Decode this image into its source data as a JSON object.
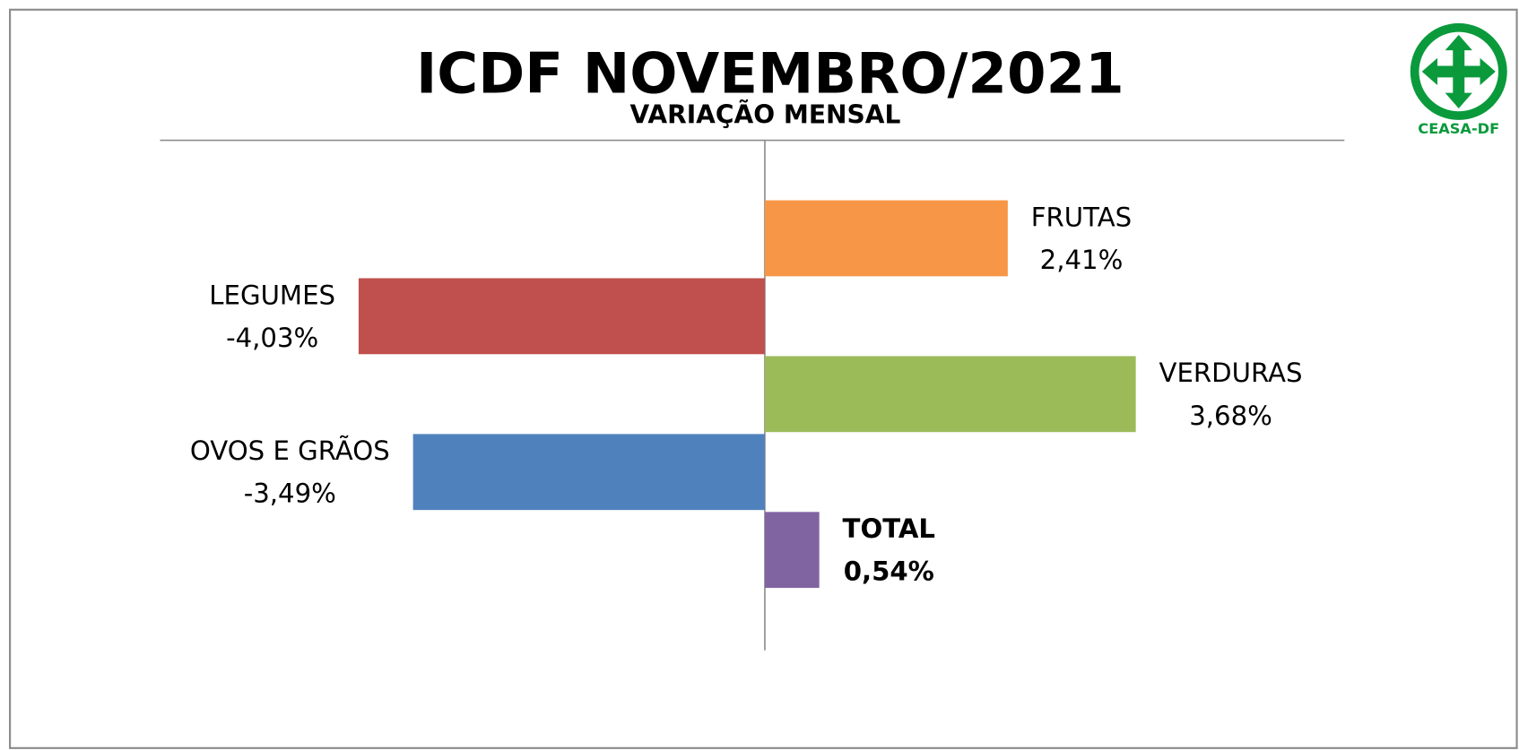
{
  "chart_data": {
    "type": "barh",
    "title": "ICDF NOVEMBRO/2021",
    "subtitle": "VARIAÇÃO MENSAL",
    "logo_text": "CEASA-DF",
    "categories": [
      "FRUTAS",
      "LEGUMES",
      "VERDURAS",
      "OVOS E GRÃOS",
      "TOTAL"
    ],
    "values": [
      2.41,
      -4.03,
      3.68,
      -3.49,
      0.54
    ],
    "value_labels": [
      "2,41%",
      "-4,03%",
      "3,68%",
      "-3,49%",
      "0,54%"
    ],
    "colors": [
      "#f79646",
      "#c0504d",
      "#9bbb59",
      "#4f81bd",
      "#8064a2"
    ],
    "bold": [
      false,
      false,
      false,
      false,
      true
    ],
    "xlim": [
      -6,
      5.75
    ]
  }
}
